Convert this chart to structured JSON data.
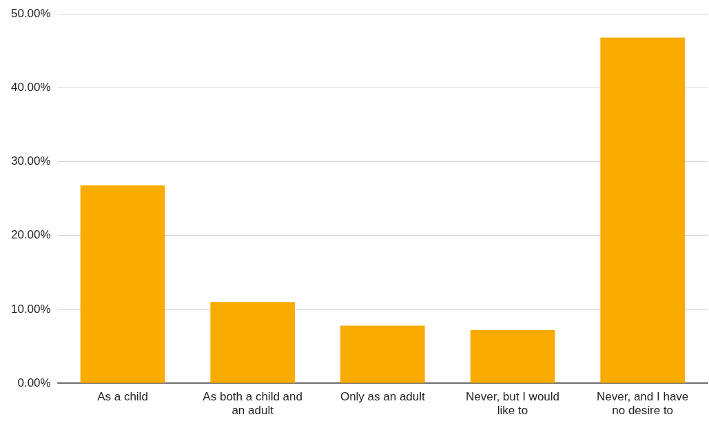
{
  "chart_data": {
    "type": "bar",
    "categories": [
      "As a child",
      "As both a child and an adult",
      "Only as an adult",
      "Never, but I would like to",
      "Never, and I have no desire to"
    ],
    "values": [
      26.8,
      11.0,
      7.8,
      7.2,
      46.8
    ],
    "color": "#f9ab00",
    "ylim": [
      0,
      50
    ],
    "yticks": [
      {
        "value": 0,
        "label": "0.00%"
      },
      {
        "value": 10,
        "label": "10.00%"
      },
      {
        "value": 20,
        "label": "20.00%"
      },
      {
        "value": 30,
        "label": "30.00%"
      },
      {
        "value": 40,
        "label": "40.00%"
      },
      {
        "value": 50,
        "label": "50.00%"
      }
    ],
    "grid": "y",
    "legend": false
  }
}
